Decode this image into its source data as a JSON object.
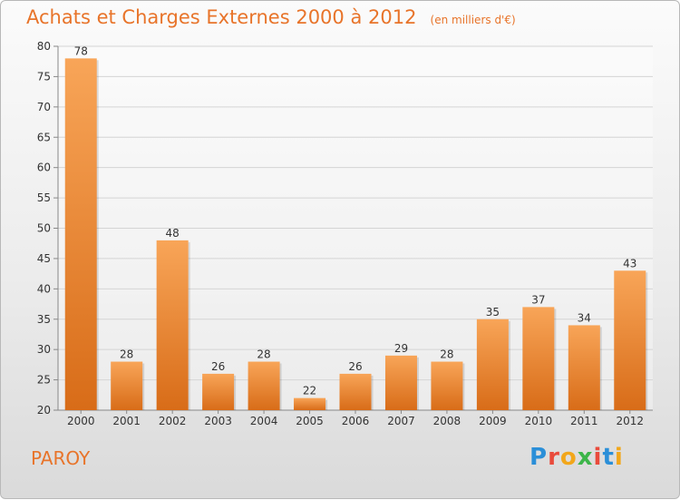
{
  "chart_data": {
    "type": "bar",
    "title": "Achats et Charges Externes 2000 à 2012",
    "subtitle": "(en milliers d'€)",
    "categories": [
      "2000",
      "2001",
      "2002",
      "2003",
      "2004",
      "2005",
      "2006",
      "2007",
      "2008",
      "2009",
      "2010",
      "2011",
      "2012"
    ],
    "values": [
      78,
      28,
      48,
      26,
      28,
      22,
      26,
      29,
      28,
      35,
      37,
      34,
      43
    ],
    "ylim": [
      20,
      80
    ],
    "yticks": [
      20,
      25,
      30,
      35,
      40,
      45,
      50,
      55,
      60,
      65,
      70,
      75,
      80
    ],
    "grid": true,
    "bar_color": "#f0923e"
  },
  "place_label": "PAROY",
  "logo_text": "Proxiti"
}
